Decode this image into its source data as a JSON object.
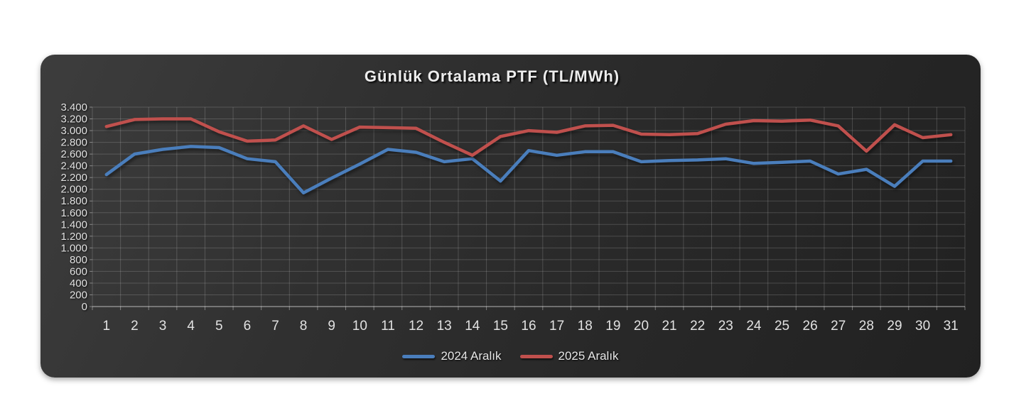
{
  "page": {
    "background": "#ffffff"
  },
  "card": {
    "background_top": "#3d3d3d",
    "background_bottom": "#212121",
    "grid_color": "rgba(255,255,255,0.17)",
    "axis_color": "rgba(255,255,255,0.45)",
    "tick_color": "rgba(255,255,255,0.38)",
    "label_color": "#e2e2e2"
  },
  "chart_data": {
    "type": "line",
    "title": "Günlük Ortalama PTF (TL/MWh)",
    "xlabel": "",
    "ylabel": "",
    "x": [
      1,
      2,
      3,
      4,
      5,
      6,
      7,
      8,
      9,
      10,
      11,
      12,
      13,
      14,
      15,
      16,
      17,
      18,
      19,
      20,
      21,
      22,
      23,
      24,
      25,
      26,
      27,
      28,
      29,
      30,
      31
    ],
    "series": [
      {
        "name": "2024 Aralık",
        "color": "#4a7ebc",
        "values": [
          2250,
          2600,
          2680,
          2730,
          2710,
          2520,
          2470,
          1940,
          2190,
          2430,
          2680,
          2630,
          2470,
          2520,
          2140,
          2660,
          2580,
          2640,
          2640,
          2470,
          2490,
          2500,
          2520,
          2440,
          2460,
          2480,
          2260,
          2340,
          2050,
          2480,
          2480
        ]
      },
      {
        "name": "2025 Aralık",
        "color": "#c0504d",
        "values": [
          3070,
          3190,
          3200,
          3200,
          2980,
          2820,
          2840,
          3080,
          2850,
          3060,
          3050,
          3040,
          2800,
          2580,
          2900,
          3000,
          2970,
          3080,
          3090,
          2940,
          2930,
          2950,
          3110,
          3170,
          3160,
          3180,
          3080,
          2650,
          3100,
          2880,
          2930
        ]
      }
    ],
    "ylim": [
      0,
      3400
    ],
    "y_ticks": [
      0,
      200,
      400,
      600,
      800,
      1000,
      1200,
      1400,
      1600,
      1800,
      2000,
      2200,
      2400,
      2600,
      2800,
      3000,
      3200,
      3400
    ],
    "y_tick_labels": [
      "0",
      "200",
      "400",
      "600",
      "800",
      "1.000",
      "1.200",
      "1.400",
      "1.600",
      "1.800",
      "2.000",
      "2.200",
      "2.400",
      "2.600",
      "2.800",
      "3.000",
      "3.200",
      "3.400"
    ],
    "grid": true,
    "legend_position": "bottom"
  }
}
